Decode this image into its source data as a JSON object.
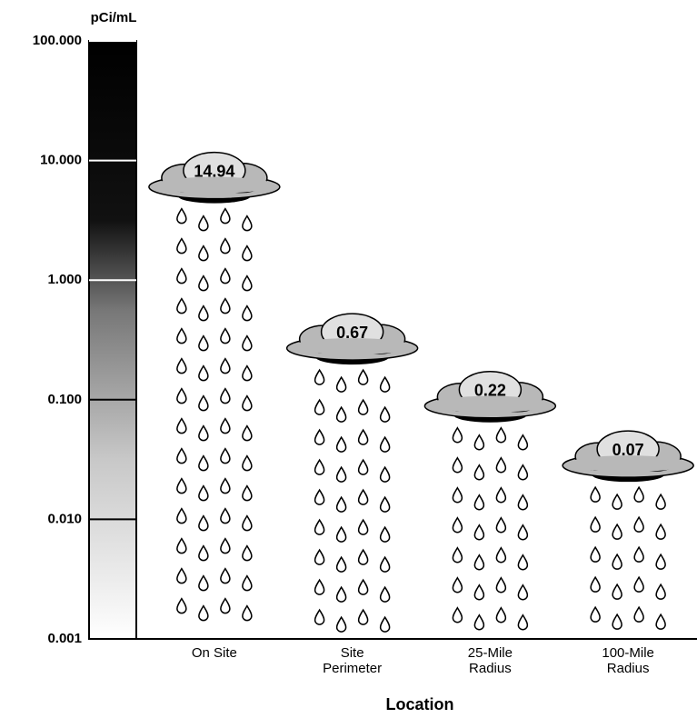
{
  "chart_data": {
    "type": "cloud",
    "y_label": "pCi/mL",
    "x_label": "Location",
    "categories": [
      "On Site",
      "Site Perimeter",
      "25-Mile Radius",
      "100-Mile Radius"
    ],
    "values": [
      14.94,
      0.67,
      0.22,
      0.07
    ],
    "ylim": [
      0.001,
      100
    ],
    "log_scale": true,
    "yticks": [
      {
        "value": 100,
        "label": "100.000"
      },
      {
        "value": 10,
        "label": "10.000"
      },
      {
        "value": 1,
        "label": "1.000"
      },
      {
        "value": 0.1,
        "label": "0.100"
      },
      {
        "value": 0.01,
        "label": "0.010"
      },
      {
        "value": 0.001,
        "label": "0.001"
      }
    ],
    "color": "#b8b8b8"
  }
}
